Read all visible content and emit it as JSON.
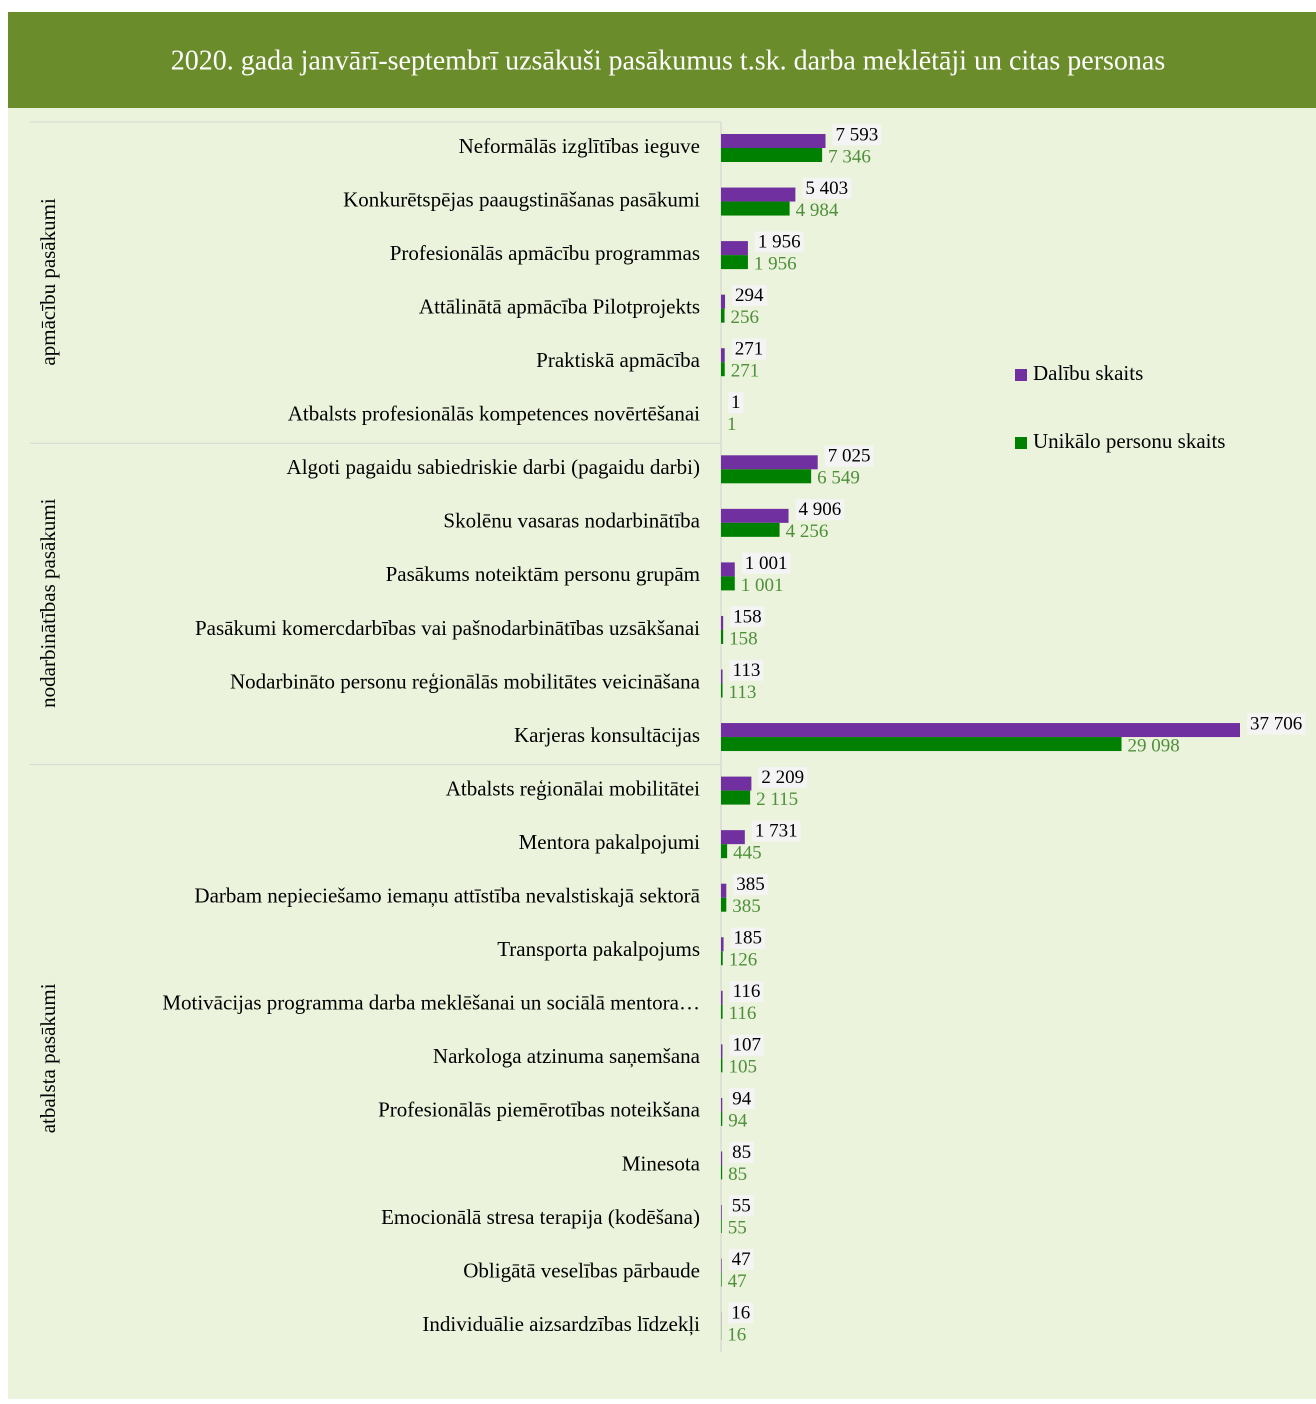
{
  "chart_data": {
    "type": "bar",
    "orientation": "horizontal",
    "title": "2020. gada janvārī-septembrī uzsākuši pasākumus t.sk. darba meklētāji un citas personas",
    "groups": [
      {
        "label": "apmācību pasākumi",
        "categories": [
          "Neformālās izglītības ieguve",
          "Konkurētspējas paaugstināšanas pasākumi",
          "Profesionālās apmācību programmas",
          "Attālinātā apmācība Pilotprojekts",
          "Praktiskā apmācība",
          "Atbalsts profesionālās kompetences novērtēšanai"
        ]
      },
      {
        "label": "nodarbinātības pasākumi",
        "categories": [
          "Algoti pagaidu sabiedriskie darbi (pagaidu darbi)",
          "Skolēnu vasaras nodarbinātība",
          "Pasākums noteiktām personu grupām",
          "Pasākumi komercdarbības vai pašnodarbinātības uzsākšanai",
          "Nodarbināto personu reģionālās mobilitātes veicināšana",
          "Karjeras konsultācijas"
        ]
      },
      {
        "label": "atbalsta pasākumi",
        "categories": [
          "Atbalsts reģionālai mobilitātei",
          "Mentora pakalpojumi",
          "Darbam nepieciešamo iemaņu attīstība nevalstiskajā sektorā",
          "Transporta pakalpojums",
          "Motivācijas programma darba meklēšanai un sociālā mentora…",
          "Narkologa atzinuma saņemšana",
          "Profesionālās piemērotības noteikšana",
          "Minesota",
          "Emocionālā stresa terapija (kodēšana)",
          "Obligātā veselības pārbaude",
          "Individuālie aizsardzības līdzekļi"
        ]
      }
    ],
    "series": [
      {
        "name": "Dalību skaits",
        "color": "#7030a0",
        "values": [
          7593,
          5403,
          1956,
          294,
          271,
          1,
          7025,
          4906,
          1001,
          158,
          113,
          37706,
          2209,
          1731,
          385,
          185,
          116,
          107,
          94,
          85,
          55,
          47,
          16
        ],
        "value_labels": [
          "7 593",
          "5 403",
          "1 956",
          "294",
          "271",
          "1",
          "7 025",
          "4 906",
          "1 001",
          "158",
          "113",
          "37 706",
          "2 209",
          "1 731",
          "385",
          "185",
          "116",
          "107",
          "94",
          "85",
          "55",
          "47",
          "16"
        ]
      },
      {
        "name": "Unikālo personu skaits",
        "color": "#008000",
        "values": [
          7346,
          4984,
          1956,
          256,
          271,
          1,
          6549,
          4256,
          1001,
          158,
          113,
          29098,
          2115,
          445,
          385,
          126,
          116,
          105,
          94,
          85,
          55,
          47,
          16
        ],
        "value_labels": [
          "7 346",
          "4 984",
          "1 956",
          "256",
          "271",
          "1",
          "6 549",
          "4 256",
          "1 001",
          "158",
          "113",
          "29 098",
          "2 115",
          "445",
          "385",
          "126",
          "116",
          "105",
          "94",
          "85",
          "55",
          "47",
          "16"
        ]
      }
    ],
    "legend": "right"
  }
}
